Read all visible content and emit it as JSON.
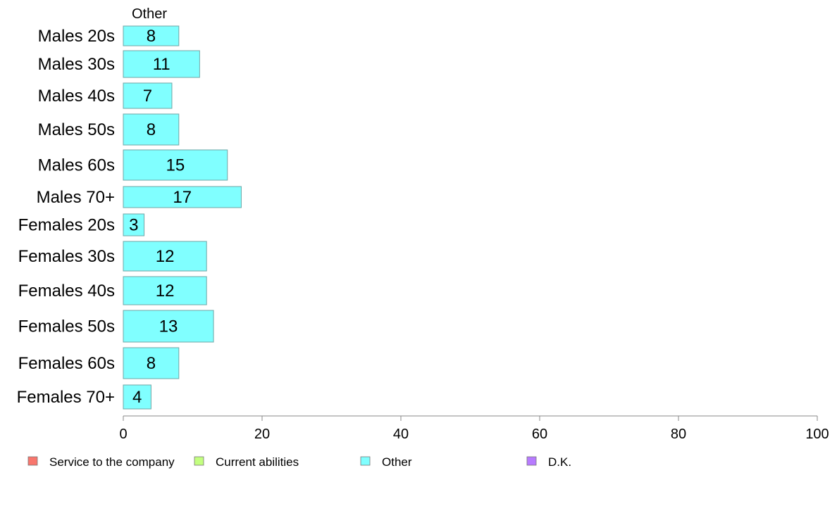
{
  "chart_data": {
    "type": "bar",
    "orientation": "horizontal",
    "panel_title": "Other",
    "categories": [
      "Males 20s",
      "Males 30s",
      "Males 40s",
      "Males 50s",
      "Males 60s",
      "Males 70+",
      "Females 20s",
      "Females 30s",
      "Females 40s",
      "Females 50s",
      "Females 60s",
      "Females 70+"
    ],
    "series": [
      {
        "name": "Other",
        "color": "#80FFFF",
        "values": [
          8,
          11,
          7,
          8,
          15,
          17,
          3,
          12,
          12,
          13,
          8,
          4
        ]
      }
    ],
    "xlim": [
      0,
      100
    ],
    "xticks": [
      0,
      20,
      40,
      60,
      80,
      100
    ],
    "grid": false,
    "legend_position": "bottom",
    "legend": [
      {
        "label": "Service to the company",
        "color": "#F8766D"
      },
      {
        "label": "Current abilities",
        "color": "#C3FF80"
      },
      {
        "label": "Other",
        "color": "#80FFFF"
      },
      {
        "label": "D.K.",
        "color": "#B77BFF"
      }
    ]
  }
}
